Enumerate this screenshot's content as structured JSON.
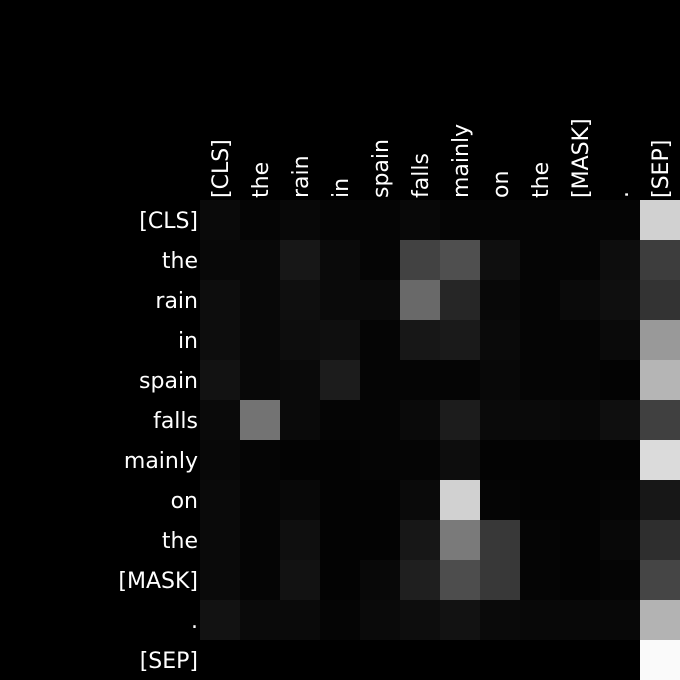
{
  "chart_data": {
    "type": "heatmap",
    "title": "",
    "xlabel": "",
    "ylabel": "",
    "x_labels": [
      "[CLS]",
      "the",
      "rain",
      "in",
      "spain",
      "falls",
      "mainly",
      "on",
      "the",
      "[MASK]",
      ".",
      "[SEP]"
    ],
    "y_labels": [
      "[CLS]",
      "the",
      "rain",
      "in",
      "spain",
      "falls",
      "mainly",
      "on",
      "the",
      "[MASK]",
      ".",
      "[SEP]"
    ],
    "value_range": [
      0,
      1
    ],
    "colormap": "grayscale",
    "values": [
      [
        0.04,
        0.02,
        0.03,
        0.02,
        0.02,
        0.03,
        0.02,
        0.02,
        0.02,
        0.02,
        0.02,
        0.82
      ],
      [
        0.03,
        0.03,
        0.09,
        0.04,
        0.02,
        0.26,
        0.31,
        0.06,
        0.02,
        0.02,
        0.05,
        0.24
      ],
      [
        0.05,
        0.03,
        0.06,
        0.04,
        0.04,
        0.41,
        0.15,
        0.03,
        0.02,
        0.04,
        0.06,
        0.2
      ],
      [
        0.05,
        0.03,
        0.05,
        0.06,
        0.02,
        0.09,
        0.1,
        0.04,
        0.02,
        0.02,
        0.04,
        0.6
      ],
      [
        0.07,
        0.03,
        0.04,
        0.11,
        0.02,
        0.02,
        0.02,
        0.03,
        0.02,
        0.02,
        0.01,
        0.71
      ],
      [
        0.04,
        0.45,
        0.04,
        0.02,
        0.02,
        0.04,
        0.11,
        0.04,
        0.04,
        0.03,
        0.06,
        0.25
      ],
      [
        0.03,
        0.02,
        0.01,
        0.01,
        0.02,
        0.02,
        0.05,
        0.01,
        0.01,
        0.01,
        0.01,
        0.86
      ],
      [
        0.04,
        0.02,
        0.03,
        0.01,
        0.01,
        0.04,
        0.82,
        0.02,
        0.01,
        0.01,
        0.02,
        0.09
      ],
      [
        0.04,
        0.02,
        0.06,
        0.01,
        0.01,
        0.09,
        0.48,
        0.22,
        0.02,
        0.01,
        0.03,
        0.18
      ],
      [
        0.04,
        0.02,
        0.07,
        0.01,
        0.03,
        0.12,
        0.3,
        0.22,
        0.02,
        0.01,
        0.02,
        0.27
      ],
      [
        0.07,
        0.04,
        0.04,
        0.02,
        0.04,
        0.05,
        0.07,
        0.04,
        0.03,
        0.03,
        0.03,
        0.7
      ],
      [
        0.0,
        0.0,
        0.0,
        0.0,
        0.0,
        0.0,
        0.0,
        0.0,
        0.0,
        0.0,
        0.0,
        0.98
      ]
    ]
  }
}
